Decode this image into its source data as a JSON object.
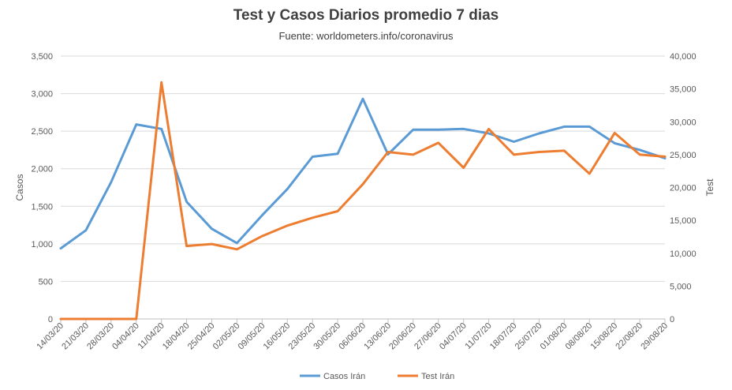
{
  "chart_data": {
    "type": "line",
    "title": "Test y Casos  Diarios  promedio  7 dias",
    "subtitle": "Fuente: worldometers.info/coronavirus",
    "ylabel": "Casos",
    "y2label": "Test",
    "ylim": [
      0,
      3500
    ],
    "y2lim": [
      0,
      40000
    ],
    "yticks": [
      0,
      500,
      1000,
      1500,
      2000,
      2500,
      3000,
      3500
    ],
    "y2ticks": [
      0,
      5000,
      10000,
      15000,
      20000,
      25000,
      30000,
      35000,
      40000
    ],
    "ytick_labels": [
      "0",
      "500",
      "1,000",
      "1,500",
      "2,000",
      "2,500",
      "3,000",
      "3,500"
    ],
    "y2tick_labels": [
      "0",
      "5,000",
      "10,000",
      "15,000",
      "20,000",
      "25,000",
      "30,000",
      "35,000",
      "40,000"
    ],
    "categories": [
      "14/03/20",
      "21/03/20",
      "28/03/20",
      "04/04/20",
      "11/04/20",
      "18/04/20",
      "25/04/20",
      "02/05/20",
      "09/05/20",
      "16/05/20",
      "23/05/20",
      "30/05/20",
      "06/06/20",
      "13/06/20",
      "20/06/20",
      "27/06/20",
      "04/07/20",
      "11/07/20",
      "18/07/20",
      "25/07/20",
      "01/08/20",
      "08/08/20",
      "15/08/20",
      "22/08/20",
      "29/08/20"
    ],
    "grid": true,
    "legend_position": "bottom",
    "series": [
      {
        "name": "Casos  Irán",
        "axis": "left",
        "color": "#5b9bd5",
        "values": [
          940,
          1180,
          1820,
          2590,
          2530,
          1560,
          1200,
          1010,
          1380,
          1730,
          2160,
          2200,
          2930,
          2190,
          2520,
          2520,
          2530,
          2470,
          2360,
          2470,
          2560,
          2560,
          2340,
          2250,
          2140
        ]
      },
      {
        "name": "Test Irán",
        "axis": "right",
        "color": "#ed7d31",
        "values": [
          0,
          0,
          0,
          0,
          36000,
          11100,
          11400,
          10600,
          12600,
          14200,
          15400,
          16400,
          20500,
          25400,
          25000,
          26800,
          23000,
          28900,
          25000,
          25400,
          25600,
          22100,
          28300,
          25000,
          24700
        ]
      }
    ]
  }
}
